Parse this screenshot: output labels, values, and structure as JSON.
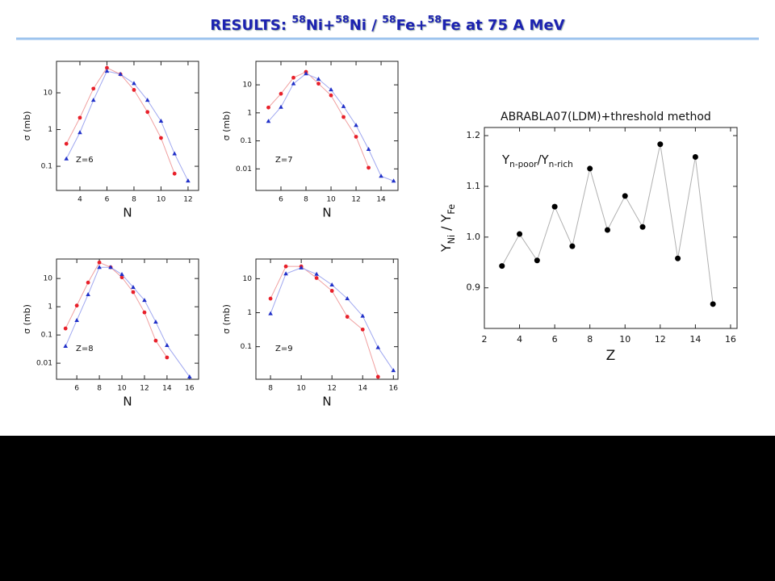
{
  "title": [
    "RESULTS: ",
    {
      "sup": "58"
    },
    "Ni+",
    {
      "sup": "58"
    },
    "Ni / ",
    {
      "sup": "58"
    },
    "Fe+",
    {
      "sup": "58"
    },
    "Fe at 75 A MeV"
  ],
  "chart_data": [
    {
      "type": "scatter",
      "annotation": "Z=6",
      "xlabel": "N",
      "ylabel": "σ (mb)",
      "log_y": true,
      "xlim": [
        2.27,
        12.78
      ],
      "xticks": [
        4,
        6,
        8,
        10,
        12
      ],
      "ylim": [
        0.022,
        72
      ],
      "yticks": [
        0.1,
        1,
        10
      ],
      "series": [
        {
          "color": "#e8202a",
          "line_color": "#f0a0a0",
          "marker": "circle",
          "x": [
            3,
            4,
            5,
            6,
            7,
            8,
            9,
            10,
            11
          ],
          "values": [
            0.41,
            2.1,
            13,
            48,
            32,
            12,
            3,
            0.59,
            0.063
          ]
        },
        {
          "color": "#2030c8",
          "line_color": "#a0a8f0",
          "marker": "triangle",
          "x": [
            3,
            4,
            5,
            6,
            7,
            8,
            9,
            10,
            11,
            12
          ],
          "values": [
            0.16,
            0.83,
            6.3,
            39,
            32,
            18,
            6.3,
            1.7,
            0.22,
            0.04
          ]
        }
      ]
    },
    {
      "type": "scatter",
      "annotation": "Z=7",
      "xlabel": "N",
      "ylabel": "σ (mb)",
      "log_y": true,
      "xlim": [
        4,
        15.35
      ],
      "xticks": [
        6,
        8,
        10,
        12,
        14
      ],
      "ylim": [
        0.0017,
        69
      ],
      "yticks": [
        0.01,
        0.1,
        1,
        10
      ],
      "series": [
        {
          "color": "#e8202a",
          "line_color": "#f0a0a0",
          "marker": "circle",
          "x": [
            5,
            6,
            7,
            8,
            9,
            10,
            11,
            12,
            13
          ],
          "values": [
            1.55,
            4.8,
            18,
            29,
            11,
            4.2,
            0.71,
            0.14,
            0.011
          ]
        },
        {
          "color": "#2030c8",
          "line_color": "#a0a8f0",
          "marker": "triangle",
          "x": [
            5,
            6,
            7,
            8,
            9,
            10,
            11,
            12,
            13,
            14,
            15
          ],
          "values": [
            0.5,
            1.6,
            11,
            25,
            16,
            6.7,
            1.7,
            0.36,
            0.05,
            0.0055,
            0.0037
          ]
        }
      ]
    },
    {
      "type": "scatter",
      "annotation": "Z=8",
      "xlabel": "N",
      "ylabel": "σ (mb)",
      "log_y": true,
      "xlim": [
        4.2,
        16.8
      ],
      "xticks": [
        6,
        8,
        10,
        12,
        14,
        16
      ],
      "ylim": [
        0.0027,
        49
      ],
      "yticks": [
        0.01,
        0.1,
        1,
        10
      ],
      "series": [
        {
          "color": "#e8202a",
          "line_color": "#f0a0a0",
          "marker": "circle",
          "x": [
            5,
            6,
            7,
            8,
            9,
            10,
            11,
            12,
            13,
            14
          ],
          "values": [
            0.17,
            1.1,
            7.2,
            37,
            25,
            11,
            3.3,
            0.63,
            0.063,
            0.016
          ]
        },
        {
          "color": "#2030c8",
          "line_color": "#a0a8f0",
          "marker": "triangle",
          "x": [
            5,
            6,
            7,
            8,
            9,
            10,
            11,
            12,
            13,
            14,
            16
          ],
          "values": [
            0.04,
            0.33,
            2.7,
            25,
            25,
            14,
            4.9,
            1.7,
            0.29,
            0.043,
            0.0033
          ]
        }
      ]
    },
    {
      "type": "scatter",
      "annotation": "Z=9",
      "xlabel": "N",
      "ylabel": "σ (mb)",
      "log_y": true,
      "xlim": [
        7.05,
        16.3
      ],
      "xticks": [
        8,
        10,
        12,
        14,
        16
      ],
      "ylim": [
        0.011,
        38
      ],
      "yticks": [
        0.1,
        1,
        10
      ],
      "series": [
        {
          "color": "#e8202a",
          "line_color": "#f0a0a0",
          "marker": "circle",
          "x": [
            8,
            9,
            10,
            11,
            12,
            13,
            14,
            15
          ],
          "values": [
            2.6,
            23,
            23,
            10.5,
            4.4,
            0.76,
            0.32,
            0.013
          ]
        },
        {
          "color": "#2030c8",
          "line_color": "#a0a8f0",
          "marker": "triangle",
          "x": [
            8,
            9,
            10,
            11,
            12,
            13,
            14,
            15,
            16
          ],
          "values": [
            0.94,
            14,
            21,
            13.6,
            6.6,
            2.6,
            0.8,
            0.095,
            0.02
          ]
        }
      ]
    },
    {
      "type": "scatter",
      "title": "ABRABLA07(LDM)+threshold method",
      "annotation": [
        "Y",
        {
          "sub": "n-poor"
        },
        "/Y",
        {
          "sub": "n-rich"
        }
      ],
      "xlabel": "Z",
      "ylabel": [
        "Y",
        {
          "sub": "Ni"
        },
        " / Y",
        {
          "sub": "Fe"
        }
      ],
      "log_y": false,
      "xlim": [
        2,
        16.37
      ],
      "xticks": [
        2,
        4,
        6,
        8,
        10,
        12,
        14,
        16
      ],
      "ylim": [
        0.82,
        1.216
      ],
      "yticks": [
        {
          "value": 0.9,
          "label": "0.9"
        },
        {
          "value": 1.0,
          "label": "1.0"
        },
        {
          "value": 1.1,
          "label": "1.1"
        },
        {
          "value": 1.2,
          "label": "1.2"
        }
      ],
      "series": [
        {
          "color": "#000000",
          "line_color": "#b0b0b0",
          "marker": "circle",
          "x": [
            3,
            4,
            5,
            6,
            7,
            8,
            9,
            10,
            11,
            12,
            13,
            14,
            15
          ],
          "values": [
            0.943,
            1.006,
            0.954,
            1.06,
            0.982,
            1.135,
            1.014,
            1.081,
            1.02,
            1.183,
            0.958,
            1.158,
            0.868
          ]
        }
      ]
    }
  ]
}
